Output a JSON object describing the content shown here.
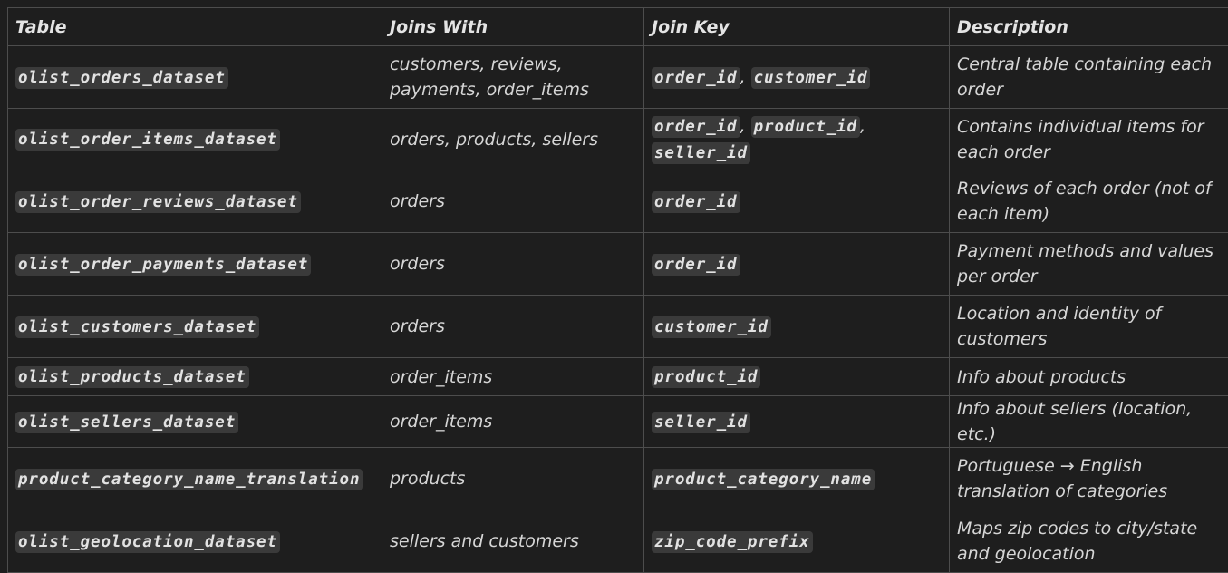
{
  "headers": [
    "Table",
    "Joins With",
    "Join Key",
    "Description"
  ],
  "rows": [
    {
      "table": "olist_orders_dataset",
      "joins_with": "customers, reviews, payments, order_items",
      "join_keys": [
        "order_id",
        "customer_id"
      ],
      "description": "Central table containing each order"
    },
    {
      "table": "olist_order_items_dataset",
      "joins_with": "orders, products, sellers",
      "join_keys": [
        "order_id",
        "product_id",
        "seller_id"
      ],
      "description": "Contains individual items for each order"
    },
    {
      "table": "olist_order_reviews_dataset",
      "joins_with": "orders",
      "join_keys": [
        "order_id"
      ],
      "description": "Reviews of each order (not of each item)"
    },
    {
      "table": "olist_order_payments_dataset",
      "joins_with": "orders",
      "join_keys": [
        "order_id"
      ],
      "description": "Payment methods and values per order"
    },
    {
      "table": "olist_customers_dataset",
      "joins_with": "orders",
      "join_keys": [
        "customer_id"
      ],
      "description": "Location and identity of customers"
    },
    {
      "table": "olist_products_dataset",
      "joins_with": "order_items",
      "join_keys": [
        "product_id"
      ],
      "description": "Info about products"
    },
    {
      "table": "olist_sellers_dataset",
      "joins_with": "order_items",
      "join_keys": [
        "seller_id"
      ],
      "description": "Info about sellers (location, etc.)"
    },
    {
      "table": "product_category_name_translation",
      "joins_with": "products",
      "join_keys": [
        "product_category_name"
      ],
      "description": "Portuguese → English translation of categories"
    },
    {
      "table": "olist_geolocation_dataset",
      "joins_with": "sellers and customers",
      "join_keys": [
        "zip_code_prefix"
      ],
      "description": "Maps zip codes to city/state and geolocation"
    }
  ]
}
